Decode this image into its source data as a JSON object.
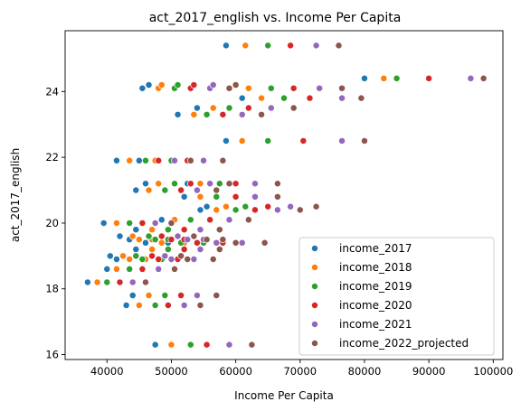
{
  "chart_data": {
    "type": "scatter",
    "title": "act_2017_english vs. Income Per Capita",
    "xlabel": "Income Per Capita",
    "ylabel": "act_2017_english",
    "xlim": [
      33500,
      101500
    ],
    "ylim": [
      15.85,
      25.85
    ],
    "xticks": [
      40000,
      50000,
      60000,
      70000,
      80000,
      90000,
      100000
    ],
    "yticks": [
      16,
      18,
      20,
      22,
      24
    ],
    "legend_position": "lower-right",
    "grid": false,
    "y": [
      16.3,
      17.5,
      17.8,
      18.2,
      18.6,
      18.9,
      18.9,
      19.0,
      19.2,
      19.4,
      19.4,
      19.5,
      19.5,
      19.6,
      19.8,
      20.0,
      20.1,
      20.4,
      20.5,
      20.8,
      21.0,
      21.2,
      21.2,
      21.9,
      21.9,
      22.5,
      23.3,
      23.5,
      23.8,
      24.1,
      24.1,
      24.2,
      24.4,
      25.4
    ],
    "series": [
      {
        "name": "income_2017",
        "color": "#1f77b4",
        "x": [
          47500,
          43000,
          44000,
          37000,
          40000,
          41500,
          43500,
          40500,
          44500,
          46000,
          49500,
          43500,
          45000,
          42000,
          44500,
          39500,
          48500,
          54500,
          55500,
          52000,
          44500,
          46000,
          52500,
          41500,
          45000,
          58500,
          51000,
          54000,
          61000,
          45500,
          59000,
          46500,
          80000,
          58500
        ]
      },
      {
        "name": "income_2018",
        "color": "#ff7f0e",
        "x": [
          50000,
          45000,
          46500,
          38500,
          41500,
          43500,
          46000,
          42500,
          47000,
          48500,
          52000,
          45000,
          47000,
          44000,
          47000,
          41500,
          50500,
          57000,
          58500,
          54500,
          46500,
          48000,
          54500,
          43500,
          47500,
          61000,
          53500,
          56500,
          64000,
          48000,
          62000,
          48500,
          83000,
          61500
        ]
      },
      {
        "name": "income_2019",
        "color": "#2ca02c",
        "x": [
          53000,
          47500,
          49000,
          40000,
          43500,
          45500,
          48500,
          44500,
          49500,
          51500,
          55000,
          47500,
          49500,
          46500,
          49500,
          43500,
          53000,
          60000,
          61500,
          57000,
          49000,
          50500,
          57500,
          46000,
          50000,
          65000,
          55500,
          59000,
          67500,
          50500,
          65500,
          51000,
          85000,
          65000
        ]
      },
      {
        "name": "income_2020",
        "color": "#d62728",
        "x": [
          55500,
          49500,
          51500,
          42000,
          45500,
          48000,
          51000,
          47000,
          52000,
          54000,
          58000,
          50000,
          52000,
          48500,
          52000,
          45500,
          56000,
          63000,
          65000,
          60000,
          51500,
          53000,
          60000,
          48000,
          52500,
          70500,
          58000,
          62000,
          71500,
          53000,
          69000,
          53500,
          90000,
          68500
        ]
      },
      {
        "name": "income_2021",
        "color": "#9467bd",
        "x": [
          59000,
          52000,
          54000,
          44000,
          48000,
          50000,
          53500,
          49000,
          54500,
          57000,
          61000,
          52500,
          55000,
          51000,
          54500,
          47500,
          59000,
          66500,
          68500,
          63000,
          54000,
          56000,
          63000,
          50500,
          55000,
          76500,
          61000,
          65500,
          76500,
          56000,
          73000,
          56500,
          96500,
          72500
        ]
      },
      {
        "name": "income_2022_projected",
        "color": "#8c564b",
        "x": [
          62500,
          54500,
          57000,
          46000,
          50500,
          52500,
          56500,
          51500,
          57500,
          60000,
          64500,
          55500,
          58000,
          53500,
          57500,
          50000,
          62000,
          70000,
          72500,
          66500,
          57000,
          59000,
          66500,
          53000,
          58000,
          80000,
          64000,
          69000,
          79500,
          59000,
          76500,
          60000,
          98500,
          76000
        ]
      }
    ],
    "legend": [
      "income_2017",
      "income_2018",
      "income_2019",
      "income_2020",
      "income_2021",
      "income_2022_projected"
    ]
  }
}
